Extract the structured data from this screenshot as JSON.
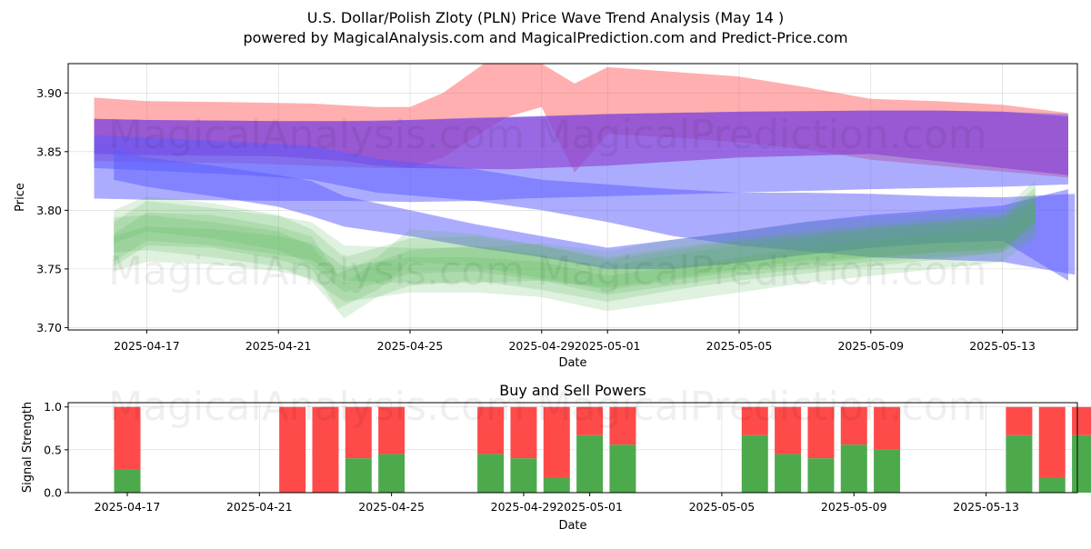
{
  "title_line1": "U.S. Dollar/Polish Zloty (PLN) Price Wave Trend Analysis (May 14 )",
  "title_line2": "powered by MagicalAnalysis.com and MagicalPrediction.com and Predict-Price.com",
  "watermarks": [
    "MagicalAnalysis.com",
    "MagicalPrediction.com"
  ],
  "colors": {
    "red": "#ff4d4d",
    "blue": "#5a5aff",
    "purple": "#8a3ccf",
    "green": "#4caf50",
    "buy": "#4caa4c",
    "sell": "#ff4a4a"
  },
  "chart_data": [
    {
      "type": "area",
      "title": "",
      "xlabel": "Date",
      "ylabel": "Price",
      "ylim": [
        3.698,
        3.925
      ],
      "xlim": [
        0,
        30.8
      ],
      "x_start_date": "2025-04-15",
      "yticks": [
        {
          "v": 3.7,
          "label": "3.70"
        },
        {
          "v": 3.75,
          "label": "3.75"
        },
        {
          "v": 3.8,
          "label": "3.80"
        },
        {
          "v": 3.85,
          "label": "3.85"
        },
        {
          "v": 3.9,
          "label": "3.90"
        }
      ],
      "xticks": [
        {
          "d": 2,
          "label": "2025-04-17"
        },
        {
          "d": 6,
          "label": "2025-04-21"
        },
        {
          "d": 10,
          "label": "2025-04-25"
        },
        {
          "d": 14,
          "label": "2025-04-29"
        },
        {
          "d": 16,
          "label": "2025-05-01"
        },
        {
          "d": 20,
          "label": "2025-05-05"
        },
        {
          "d": 24,
          "label": "2025-05-09"
        },
        {
          "d": 28,
          "label": "2025-05-13"
        }
      ],
      "series": [
        {
          "name": "red-wave",
          "color": "red",
          "opacity": 0.45,
          "x": [
            0.4,
            2,
            5,
            7,
            9,
            10,
            11,
            12.5,
            13,
            14,
            15,
            16,
            18,
            20,
            22,
            24,
            26,
            28,
            30
          ],
          "upper": [
            3.896,
            3.893,
            3.892,
            3.891,
            3.888,
            3.888,
            3.9,
            3.93,
            3.93,
            3.925,
            3.908,
            3.922,
            3.918,
            3.914,
            3.905,
            3.895,
            3.893,
            3.89,
            3.883
          ],
          "lower": [
            3.842,
            3.841,
            3.84,
            3.838,
            3.836,
            3.836,
            3.845,
            3.872,
            3.88,
            3.888,
            3.832,
            3.865,
            3.862,
            3.858,
            3.852,
            3.843,
            3.838,
            3.833,
            3.828
          ]
        },
        {
          "name": "blue-wave-wide",
          "color": "blue",
          "opacity": 0.5,
          "x": [
            0.4,
            2,
            6,
            8,
            10,
            12,
            13.5,
            16,
            20,
            24,
            26,
            28,
            30
          ],
          "upper": [
            3.878,
            3.877,
            3.876,
            3.876,
            3.877,
            3.879,
            3.88,
            3.882,
            3.884,
            3.885,
            3.885,
            3.884,
            3.882
          ],
          "lower": [
            3.81,
            3.809,
            3.808,
            3.808,
            3.807,
            3.808,
            3.81,
            3.812,
            3.815,
            3.818,
            3.819,
            3.82,
            3.822
          ]
        },
        {
          "name": "purple-wave",
          "color": "purple",
          "opacity": 0.6,
          "x": [
            0.4,
            2,
            6,
            8,
            9,
            10,
            13,
            16,
            20,
            24,
            26,
            28,
            30
          ],
          "upper": [
            3.878,
            3.877,
            3.876,
            3.876,
            3.876,
            3.877,
            3.879,
            3.882,
            3.884,
            3.885,
            3.885,
            3.884,
            3.88
          ],
          "lower": [
            3.848,
            3.847,
            3.846,
            3.842,
            3.838,
            3.836,
            3.835,
            3.838,
            3.845,
            3.848,
            3.842,
            3.836,
            3.83
          ]
        },
        {
          "name": "blue-wave-mid",
          "color": "blue",
          "opacity": 0.5,
          "x": [
            0.4,
            2,
            5,
            7,
            9,
            12,
            14,
            16,
            18,
            20,
            22,
            24,
            26,
            28,
            30.2
          ],
          "upper": [
            3.864,
            3.862,
            3.858,
            3.855,
            3.844,
            3.835,
            3.826,
            3.822,
            3.818,
            3.815,
            3.815,
            3.814,
            3.812,
            3.811,
            3.814
          ],
          "lower": [
            3.836,
            3.834,
            3.83,
            3.826,
            3.815,
            3.808,
            3.8,
            3.79,
            3.778,
            3.77,
            3.765,
            3.76,
            3.758,
            3.756,
            3.745
          ]
        },
        {
          "name": "blue-wave-low",
          "color": "blue",
          "opacity": 0.5,
          "x": [
            1,
            2,
            4,
            6,
            7,
            8,
            10,
            12,
            14,
            16,
            18,
            20,
            22,
            24,
            26,
            28,
            30
          ],
          "upper": [
            3.852,
            3.845,
            3.838,
            3.83,
            3.825,
            3.812,
            3.8,
            3.788,
            3.778,
            3.768,
            3.775,
            3.782,
            3.79,
            3.796,
            3.8,
            3.804,
            3.818
          ],
          "lower": [
            3.826,
            3.82,
            3.812,
            3.803,
            3.795,
            3.786,
            3.778,
            3.768,
            3.76,
            3.75,
            3.75,
            3.755,
            3.762,
            3.768,
            3.772,
            3.774,
            3.74
          ]
        },
        {
          "name": "green-wave-1",
          "color": "green",
          "opacity": 0.18,
          "x": [
            1,
            2,
            4,
            6,
            7,
            8,
            10,
            12,
            14,
            16,
            18,
            20,
            22,
            24,
            26,
            28,
            29
          ],
          "upper": [
            3.79,
            3.808,
            3.802,
            3.795,
            3.79,
            3.77,
            3.768,
            3.768,
            3.772,
            3.765,
            3.775,
            3.782,
            3.79,
            3.794,
            3.798,
            3.8,
            3.826
          ],
          "lower": [
            3.756,
            3.774,
            3.77,
            3.762,
            3.758,
            3.74,
            3.738,
            3.738,
            3.74,
            3.734,
            3.742,
            3.75,
            3.757,
            3.76,
            3.764,
            3.766,
            3.79
          ]
        },
        {
          "name": "green-wave-2",
          "color": "green",
          "opacity": 0.18,
          "x": [
            1,
            2,
            4,
            6,
            7,
            7.8,
            9,
            10,
            12,
            14,
            16,
            18,
            20,
            22,
            24,
            26,
            28,
            29
          ],
          "upper": [
            3.78,
            3.798,
            3.796,
            3.786,
            3.778,
            3.746,
            3.76,
            3.784,
            3.78,
            3.77,
            3.76,
            3.768,
            3.776,
            3.782,
            3.787,
            3.792,
            3.796,
            3.814
          ],
          "lower": [
            3.752,
            3.77,
            3.768,
            3.758,
            3.75,
            3.716,
            3.732,
            3.756,
            3.752,
            3.742,
            3.732,
            3.74,
            3.748,
            3.754,
            3.759,
            3.764,
            3.768,
            3.788
          ]
        },
        {
          "name": "green-wave-3",
          "color": "green",
          "opacity": 0.18,
          "x": [
            1,
            2,
            4,
            6,
            7,
            8,
            9,
            10,
            12,
            14,
            16,
            18,
            20,
            22,
            24,
            26,
            28,
            29
          ],
          "upper": [
            3.794,
            3.796,
            3.79,
            3.782,
            3.77,
            3.738,
            3.756,
            3.766,
            3.77,
            3.762,
            3.752,
            3.762,
            3.77,
            3.776,
            3.782,
            3.788,
            3.794,
            3.81
          ],
          "lower": [
            3.764,
            3.766,
            3.76,
            3.752,
            3.74,
            3.708,
            3.726,
            3.736,
            3.74,
            3.732,
            3.722,
            3.732,
            3.74,
            3.746,
            3.752,
            3.758,
            3.764,
            3.78
          ]
        },
        {
          "name": "green-wave-4",
          "color": "green",
          "opacity": 0.18,
          "x": [
            1,
            2,
            4,
            6,
            7,
            8,
            10,
            12,
            14,
            16,
            18,
            20,
            22,
            24,
            26,
            28,
            29
          ],
          "upper": [
            3.778,
            3.786,
            3.784,
            3.778,
            3.772,
            3.752,
            3.76,
            3.76,
            3.756,
            3.744,
            3.752,
            3.76,
            3.768,
            3.774,
            3.78,
            3.786,
            3.806
          ],
          "lower": [
            3.748,
            3.756,
            3.754,
            3.748,
            3.742,
            3.722,
            3.73,
            3.73,
            3.726,
            3.714,
            3.722,
            3.73,
            3.738,
            3.744,
            3.75,
            3.756,
            3.776
          ]
        },
        {
          "name": "green-wave-5",
          "color": "green",
          "opacity": 0.18,
          "x": [
            1,
            2,
            4,
            6,
            7,
            8,
            10,
            12,
            14,
            16,
            18,
            20,
            22,
            24,
            26,
            28,
            29
          ],
          "upper": [
            3.8,
            3.812,
            3.806,
            3.796,
            3.784,
            3.76,
            3.776,
            3.778,
            3.77,
            3.758,
            3.766,
            3.774,
            3.78,
            3.786,
            3.79,
            3.794,
            3.82
          ],
          "lower": [
            3.772,
            3.782,
            3.776,
            3.766,
            3.754,
            3.73,
            3.746,
            3.748,
            3.74,
            3.728,
            3.736,
            3.744,
            3.75,
            3.756,
            3.76,
            3.764,
            3.792
          ]
        }
      ]
    },
    {
      "type": "bar",
      "title": "Buy and Sell Powers",
      "xlabel": "Date",
      "ylabel": "Signal Strength",
      "ylim": [
        0,
        1.05
      ],
      "yticks": [
        {
          "v": 0.0,
          "label": "0.0"
        },
        {
          "v": 0.5,
          "label": "0.5"
        },
        {
          "v": 1.0,
          "label": "1.0"
        }
      ],
      "series": [
        {
          "name": "Buy",
          "color": "buy"
        },
        {
          "name": "Sell",
          "color": "sell"
        }
      ],
      "bars": [
        {
          "d": 2,
          "buy": 0.27
        },
        {
          "d": 7,
          "buy": 0.0
        },
        {
          "d": 8,
          "buy": 0.0
        },
        {
          "d": 9,
          "buy": 0.4
        },
        {
          "d": 10,
          "buy": 0.45
        },
        {
          "d": 13,
          "buy": 0.45
        },
        {
          "d": 14,
          "buy": 0.4
        },
        {
          "d": 15,
          "buy": 0.17
        },
        {
          "d": 16,
          "buy": 0.67
        },
        {
          "d": 17,
          "buy": 0.56
        },
        {
          "d": 21,
          "buy": 0.67
        },
        {
          "d": 22,
          "buy": 0.45
        },
        {
          "d": 23,
          "buy": 0.4
        },
        {
          "d": 24,
          "buy": 0.56
        },
        {
          "d": 25,
          "buy": 0.5
        },
        {
          "d": 29,
          "buy": 0.67
        },
        {
          "d": 30,
          "buy": 0.17
        },
        {
          "d": 31,
          "buy": 0.67
        }
      ]
    }
  ]
}
